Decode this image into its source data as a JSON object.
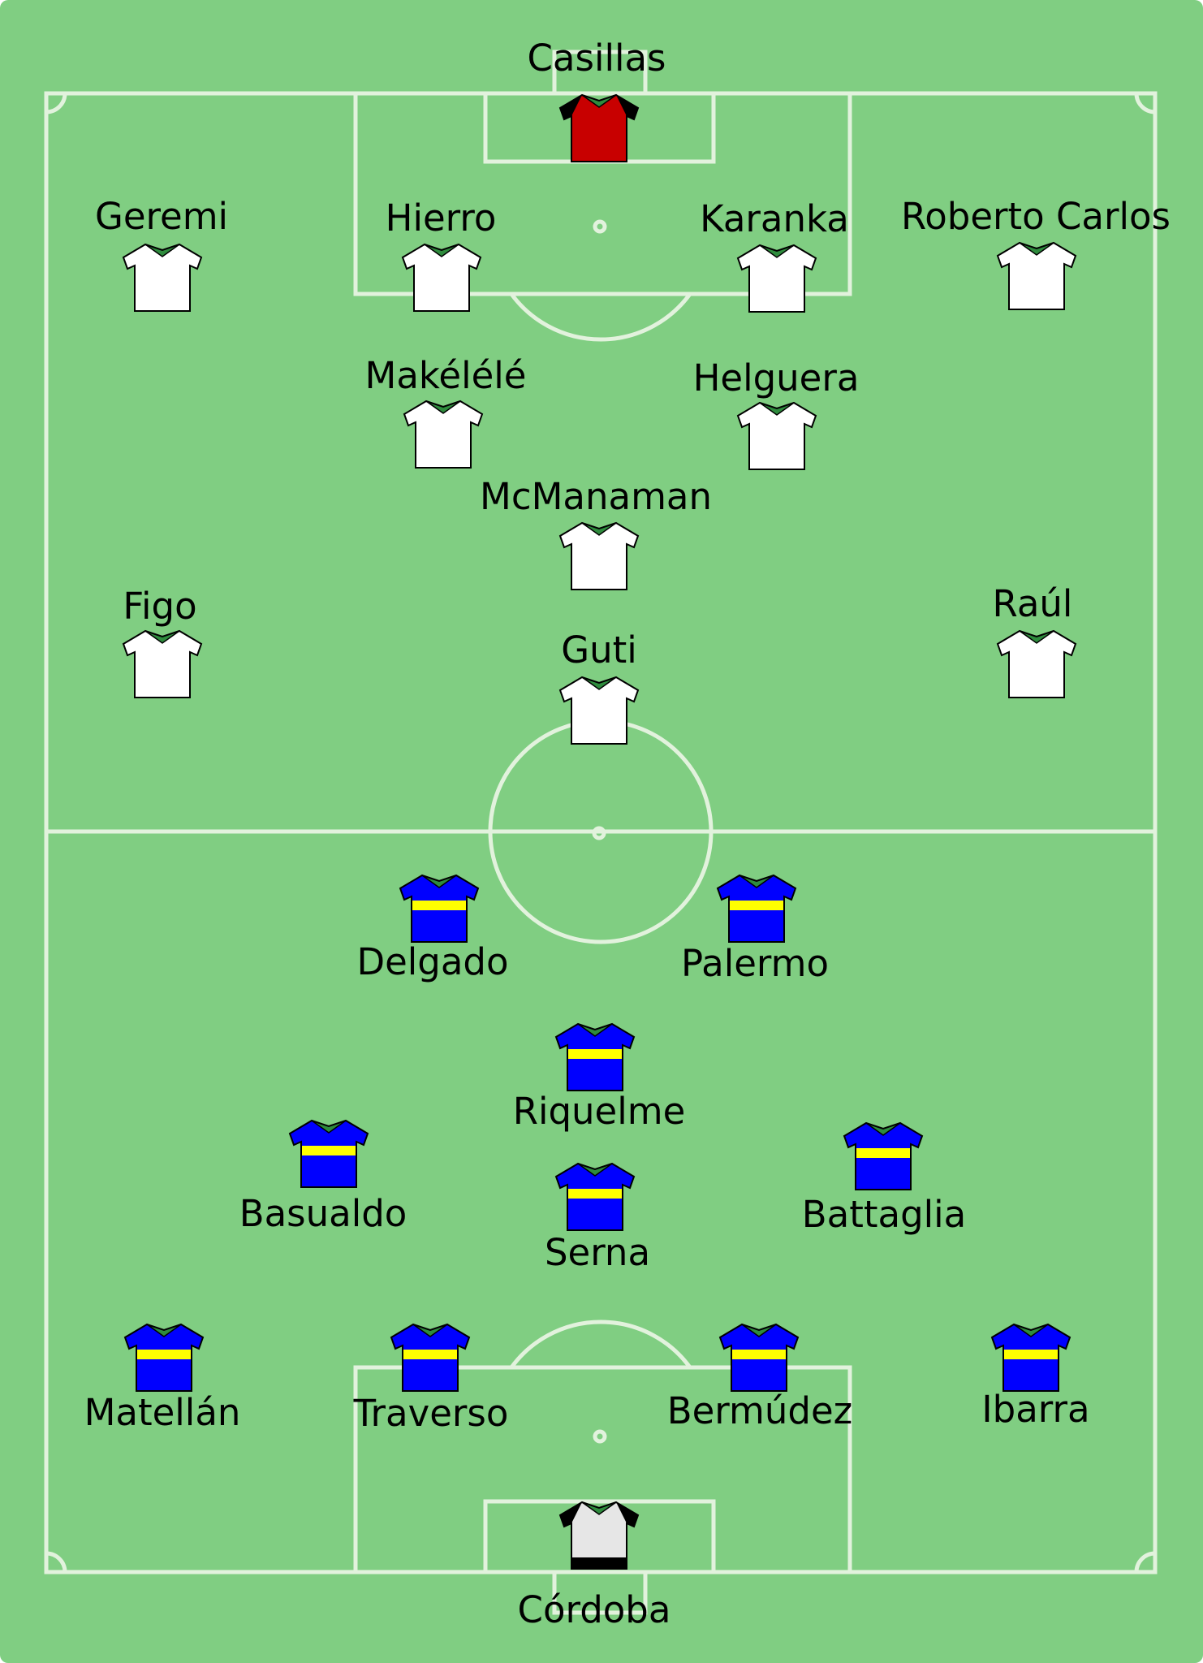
{
  "colors": {
    "pitch": "#80ce82",
    "lines": "#e2f2dd",
    "label": "#000000",
    "shirt_outline": "#000000"
  },
  "teams": {
    "real_madrid": {
      "outfield_kit": {
        "body": "#ffffff",
        "sleeves": "#ffffff",
        "stripe": null
      },
      "keeper_kit": {
        "body": "#c80000",
        "sleeves": "#000000",
        "stripe": null
      },
      "players": {
        "casillas": "Casillas",
        "geremi": "Geremi",
        "hierro": "Hierro",
        "karanka": "Karanka",
        "roberto_carlos": "Roberto Carlos",
        "makelele": "Makélélé",
        "helguera": "Helguera",
        "mcmanaman": "McManaman",
        "figo": "Figo",
        "raul": "Raúl",
        "guti": "Guti"
      }
    },
    "boca_juniors": {
      "outfield_kit": {
        "body": "#0000ff",
        "sleeves": "#0000ff",
        "stripe": "#ffff00"
      },
      "keeper_kit": {
        "body": "#e6e6e6",
        "sleeves": "#000000",
        "hem": "#000000"
      },
      "players": {
        "delgado": "Delgado",
        "palermo": "Palermo",
        "riquelme": "Riquelme",
        "basualdo": "Basualdo",
        "serna": "Serna",
        "battaglia": "Battaglia",
        "matellan": "Matellán",
        "traverso": "Traverso",
        "bermudez": "Bermúdez",
        "ibarra": "Ibarra",
        "cordoba": "Córdoba"
      }
    }
  }
}
